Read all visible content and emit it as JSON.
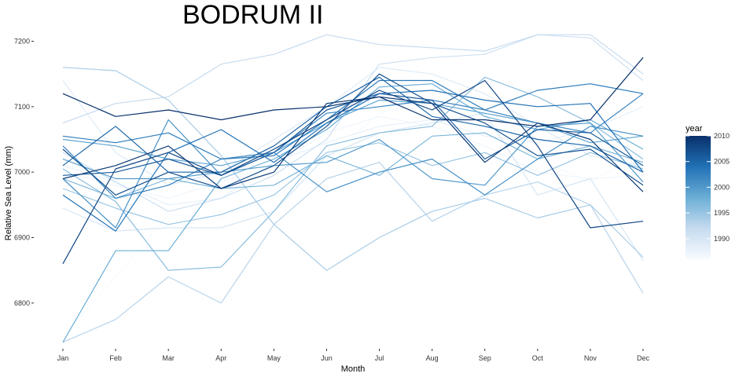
{
  "chart_data": {
    "type": "line",
    "title": "BODRUM II",
    "xlabel": "Month",
    "ylabel": "Relative Sea Level (mm)",
    "categories": [
      "Jan",
      "Feb",
      "Mar",
      "Apr",
      "May",
      "Jun",
      "Jul",
      "Aug",
      "Sep",
      "Oct",
      "Nov",
      "Dec"
    ],
    "ylim": [
      6735,
      7215
    ],
    "yticks": [
      6800,
      6900,
      7000,
      7100,
      7200
    ],
    "grid": false,
    "legend": {
      "title": "year",
      "position": "right",
      "type": "colorbar",
      "range": [
        1986,
        2010
      ],
      "ticks": [
        1990,
        1995,
        2000,
        2005,
        2010
      ],
      "colors": [
        "#f7fbff",
        "#c6dbef",
        "#6baed6",
        "#2171b5",
        "#08306b"
      ]
    },
    "series": [
      {
        "year": 1986,
        "values": [
          6750,
          6840,
          6935,
          6930,
          6960,
          7020,
          7090,
          7110,
          7060,
          7020,
          6985,
          7030
        ]
      },
      {
        "year": 1987,
        "values": [
          7000,
          6980,
          6960,
          6985,
          7010,
          7060,
          7085,
          7070,
          7040,
          7000,
          6990,
          6995
        ]
      },
      {
        "year": 1988,
        "values": [
          7010,
          6985,
          6950,
          6960,
          7015,
          7045,
          7070,
          7080,
          7055,
          7045,
          7065,
          7100
        ]
      },
      {
        "year": 1989,
        "values": [
          7140,
          7030,
          6980,
          7000,
          7050,
          7100,
          7160,
          7150,
          7120,
          7070,
          7025,
          7010
        ]
      },
      {
        "year": 1990,
        "values": [
          6945,
          6910,
          6915,
          6915,
          6940,
          7025,
          7060,
          7075,
          7090,
          6965,
          6990,
          6865
        ]
      },
      {
        "year": 1991,
        "values": [
          7030,
          6985,
          6940,
          6960,
          6995,
          7050,
          7165,
          7175,
          7180,
          7210,
          7205,
          7140
        ]
      },
      {
        "year": 1992,
        "values": [
          7075,
          7105,
          7115,
          7165,
          7180,
          7210,
          7195,
          7190,
          7185,
          7210,
          7210,
          7150
        ]
      },
      {
        "year": 1993,
        "values": [
          6740,
          6775,
          6840,
          6800,
          6920,
          6990,
          7015,
          6925,
          6965,
          6985,
          6950,
          6815
        ]
      },
      {
        "year": 1994,
        "values": [
          7160,
          7155,
          7110,
          7025,
          6920,
          6850,
          6900,
          6940,
          6960,
          6930,
          6950,
          6870
        ]
      },
      {
        "year": 1995,
        "values": [
          6975,
          6945,
          6920,
          6935,
          6965,
          7030,
          7045,
          7010,
          7030,
          6995,
          7030,
          7005
        ]
      },
      {
        "year": 1996,
        "values": [
          7005,
          6955,
          6850,
          6855,
          6940,
          7040,
          7060,
          7070,
          7145,
          7115,
          7075,
          7020
        ]
      },
      {
        "year": 1997,
        "values": [
          6990,
          6960,
          6990,
          6975,
          6980,
          7025,
          6995,
          7055,
          7060,
          7020,
          7040,
          7015
        ]
      },
      {
        "year": 1998,
        "values": [
          6740,
          6880,
          6880,
          6990,
          7020,
          7065,
          7130,
          7135,
          7085,
          7065,
          7080,
          7035
        ]
      },
      {
        "year": 1999,
        "values": [
          7050,
          7040,
          7020,
          7010,
          7030,
          7075,
          7110,
          7105,
          7090,
          7075,
          7045,
          7055
        ]
      },
      {
        "year": 2000,
        "values": [
          7020,
          6990,
          6990,
          7000,
          7010,
          7015,
          7050,
          6990,
          6980,
          7070,
          7075,
          6985
        ]
      },
      {
        "year": 2001,
        "values": [
          6990,
          6915,
          7080,
          6995,
          7030,
          6970,
          7000,
          7020,
          6965,
          7020,
          7070,
          7055
        ]
      },
      {
        "year": 2002,
        "values": [
          7040,
          6960,
          6980,
          7020,
          7030,
          7090,
          7100,
          7110,
          7095,
          7075,
          7060,
          7120
        ]
      },
      {
        "year": 2003,
        "values": [
          7055,
          7045,
          7060,
          7020,
          7025,
          7080,
          7140,
          7140,
          7095,
          7125,
          7135,
          7120
        ]
      },
      {
        "year": 2004,
        "values": [
          6965,
          6910,
          7030,
          7065,
          7015,
          7075,
          7120,
          7125,
          7110,
          7100,
          7105,
          7000
        ]
      },
      {
        "year": 2005,
        "values": [
          7010,
          7070,
          7000,
          7000,
          7040,
          7100,
          7145,
          7085,
          7070,
          7050,
          7040,
          7000
        ]
      },
      {
        "year": 2006,
        "values": [
          6995,
          7000,
          7020,
          6995,
          7030,
          7095,
          7120,
          7110,
          7020,
          7065,
          7060,
          7010
        ]
      },
      {
        "year": 2007,
        "values": [
          7035,
          6965,
          7000,
          6975,
          7010,
          7070,
          7150,
          7105,
          7075,
          7025,
          7035,
          6980
        ]
      },
      {
        "year": 2008,
        "values": [
          6860,
          7005,
          7030,
          6995,
          7035,
          7080,
          7125,
          7095,
          7140,
          7040,
          6915,
          6925
        ]
      },
      {
        "year": 2009,
        "values": [
          6990,
          7010,
          7040,
          6975,
          7000,
          7105,
          7115,
          7105,
          7015,
          7075,
          7050,
          6970
        ]
      },
      {
        "year": 2010,
        "values": [
          7120,
          7085,
          7095,
          7080,
          7095,
          7100,
          7115,
          7080,
          7080,
          7070,
          7080,
          7175
        ]
      }
    ]
  }
}
